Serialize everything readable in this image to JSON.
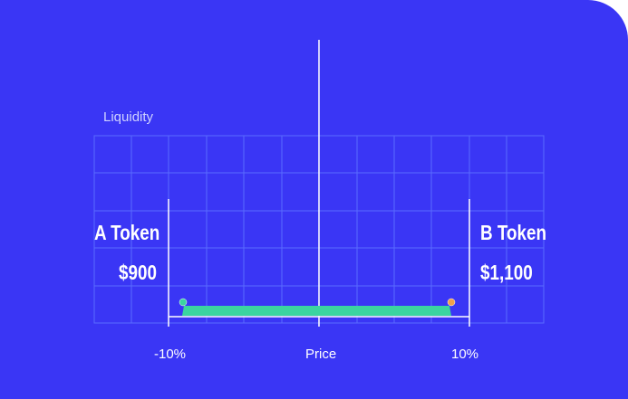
{
  "diagram": {
    "y_axis_label": "Liquidity",
    "x_axis_label": "Price",
    "range_min_label": "-10%",
    "range_max_label": "10%",
    "token_a": {
      "name": "A Token",
      "price": "$900"
    },
    "token_b": {
      "name": "B Token",
      "price": "$1,100"
    },
    "colors": {
      "background": "#3a36f5",
      "grid": "#5a6cff",
      "lines": "#ffffff",
      "liquidity_band": "#3bd4a0",
      "left_handle": "#3bd4a0",
      "right_handle": "#f0a04a"
    }
  }
}
